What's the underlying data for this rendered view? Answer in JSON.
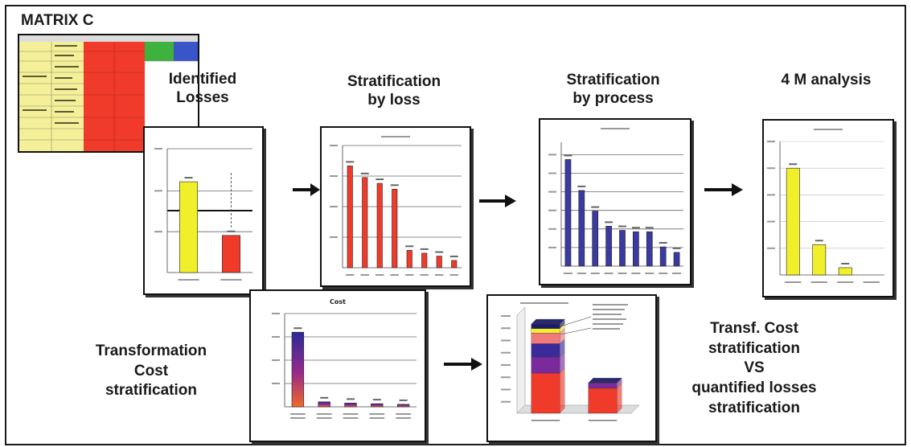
{
  "title": "MATRIX C",
  "headings": {
    "identified": [
      "Identified",
      "Losses"
    ],
    "by_loss": [
      "Stratification",
      "by loss"
    ],
    "by_process": [
      "Stratification",
      "by process"
    ],
    "four_m": "4 M analysis",
    "transformation": [
      "Transformation",
      "Cost",
      "stratification"
    ],
    "transf_vs": [
      "Transf. Cost",
      "stratification",
      "VS",
      "quantified losses",
      "stratification"
    ]
  },
  "colors": {
    "yellow": "#f0ef2a",
    "red": "#f03a2a",
    "blue": "#3a3aa0",
    "green": "#3fb13f",
    "matrix_yellow": "#f4f09a",
    "matrix_blue": "#3a55c8"
  },
  "chart_data": [
    {
      "type": "bar",
      "id": "identified-losses",
      "categories": [
        "",
        ""
      ],
      "series": [
        {
          "values": [
            2.2,
            0.9
          ]
        }
      ],
      "ylim": [
        0,
        3
      ],
      "colors": [
        "#f0ef2a",
        "#f03a2a"
      ]
    },
    {
      "type": "bar",
      "id": "stratification-by-loss",
      "categories": [
        "",
        "",
        "",
        "",
        "",
        "",
        "",
        ""
      ],
      "series": [
        {
          "values": [
            3.5,
            3.1,
            2.9,
            2.7,
            0.6,
            0.5,
            0.4,
            0.25
          ]
        }
      ],
      "ylim": [
        0,
        4.2
      ],
      "colors": [
        "#f03a2a"
      ]
    },
    {
      "type": "bar",
      "id": "stratification-by-process",
      "categories": [
        "",
        "",
        "",
        "",
        "",
        "",
        "",
        "",
        ""
      ],
      "series": [
        {
          "values": [
            1.55,
            1.1,
            0.8,
            0.58,
            0.52,
            0.5,
            0.5,
            0.28,
            0.2
          ]
        }
      ],
      "ylim": [
        0,
        1.8
      ],
      "colors": [
        "#3a3aa0"
      ]
    },
    {
      "type": "bar",
      "id": "4m-analysis",
      "categories": [
        "",
        "",
        "",
        ""
      ],
      "series": [
        {
          "values": [
            88,
            25,
            6,
            0
          ]
        }
      ],
      "ylim": [
        0,
        110
      ],
      "colors": [
        "#f0ef2a"
      ]
    },
    {
      "type": "bar",
      "id": "transformation-cost",
      "title": "Cost",
      "categories": [
        "",
        "",
        "",
        "",
        ""
      ],
      "series": [
        {
          "values": [
            600000,
            40000,
            30000,
            25000,
            20000
          ]
        }
      ],
      "ylim": [
        0,
        750000
      ],
      "colors": [
        "#3a2a9a"
      ]
    },
    {
      "type": "bar",
      "id": "transf-cost-vs-losses",
      "categories": [
        "",
        ""
      ],
      "series": [
        {
          "values": [
            0.45,
            0.28
          ]
        },
        {
          "values": [
            0.18,
            0.06
          ]
        },
        {
          "values": [
            0.15,
            0.0
          ]
        },
        {
          "values": [
            0.12,
            0.0
          ]
        },
        {
          "values": [
            0.05,
            0.0
          ]
        },
        {
          "values": [
            0.05,
            0.0
          ]
        }
      ],
      "ylim": [
        0,
        1.1
      ],
      "colors": [
        "#f03a2a",
        "#7a2a9a",
        "#3a2a9a",
        "#f07a7a",
        "#f0ef2a",
        "#1a1a6a"
      ]
    }
  ]
}
